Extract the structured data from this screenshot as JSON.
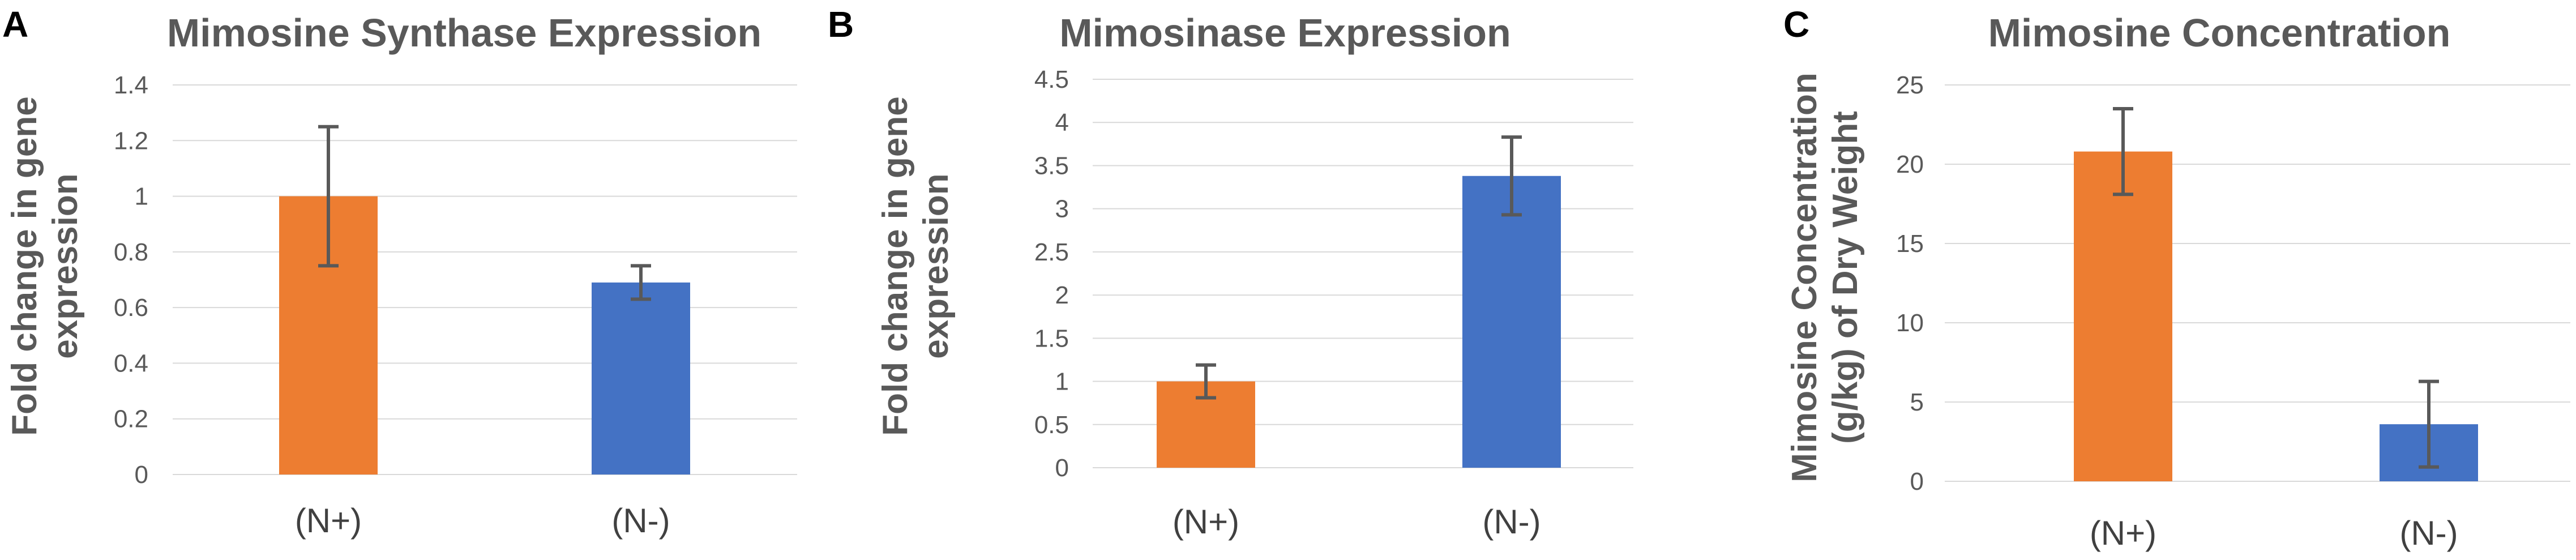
{
  "colors": {
    "n_plus": "#ED7D31",
    "n_minus": "#4472C4",
    "grid": "#D9D9D9",
    "error_bar": "#595959",
    "text": "#595959"
  },
  "panels": [
    {
      "letter": "A",
      "title": "Mimosine Synthase Expression",
      "ylabel_lines": [
        "Fold change in gene",
        "expression"
      ]
    },
    {
      "letter": "B",
      "title": "Mimosinase Expression",
      "ylabel_lines": [
        "Fold change in gene",
        "expression"
      ]
    },
    {
      "letter": "C",
      "title": "Mimosine Concentration",
      "ylabel_lines": [
        "Mimosine Concentration",
        "(g/kg) of Dry Weight"
      ]
    }
  ],
  "chart_data": [
    {
      "type": "bar",
      "title": "Mimosine Synthase Expression",
      "ylabel": "Fold change in gene expression",
      "categories": [
        "(N+)",
        "(N-)"
      ],
      "values": [
        1.0,
        0.69
      ],
      "errors": [
        0.25,
        0.06
      ],
      "ylim": [
        0,
        1.4
      ],
      "yticks": [
        0,
        0.2,
        0.4,
        0.6,
        0.8,
        1,
        1.2,
        1.4
      ],
      "ytick_labels": [
        "0",
        "0.2",
        "0.4",
        "0.6",
        "0.8",
        "1",
        "1.2",
        "1.4"
      ],
      "bar_colors": [
        "#ED7D31",
        "#4472C4"
      ],
      "grid": true
    },
    {
      "type": "bar",
      "title": "Mimosinase Expression",
      "ylabel": "Fold change in gene expression",
      "categories": [
        "(N+)",
        "(N-)"
      ],
      "values": [
        1.0,
        3.38
      ],
      "errors": [
        0.19,
        0.45
      ],
      "ylim": [
        0,
        4.5
      ],
      "yticks": [
        0,
        0.5,
        1,
        1.5,
        2,
        2.5,
        3,
        3.5,
        4,
        4.5
      ],
      "ytick_labels": [
        "0",
        "0.5",
        "1",
        "1.5",
        "2",
        "2.5",
        "3",
        "3.5",
        "4",
        "4.5"
      ],
      "bar_colors": [
        "#ED7D31",
        "#4472C4"
      ],
      "grid": true
    },
    {
      "type": "bar",
      "title": "Mimosine Concentration",
      "ylabel": "Mimosine Concentration (g/kg) of Dry Weight",
      "categories": [
        "(N+)",
        "(N-)"
      ],
      "values": [
        20.8,
        3.6
      ],
      "errors": [
        2.7,
        2.7
      ],
      "ylim": [
        0,
        25
      ],
      "yticks": [
        0,
        5,
        10,
        15,
        20,
        25
      ],
      "ytick_labels": [
        "0",
        "5",
        "10",
        "15",
        "20",
        "25"
      ],
      "bar_colors": [
        "#ED7D31",
        "#4472C4"
      ],
      "grid": true
    }
  ]
}
